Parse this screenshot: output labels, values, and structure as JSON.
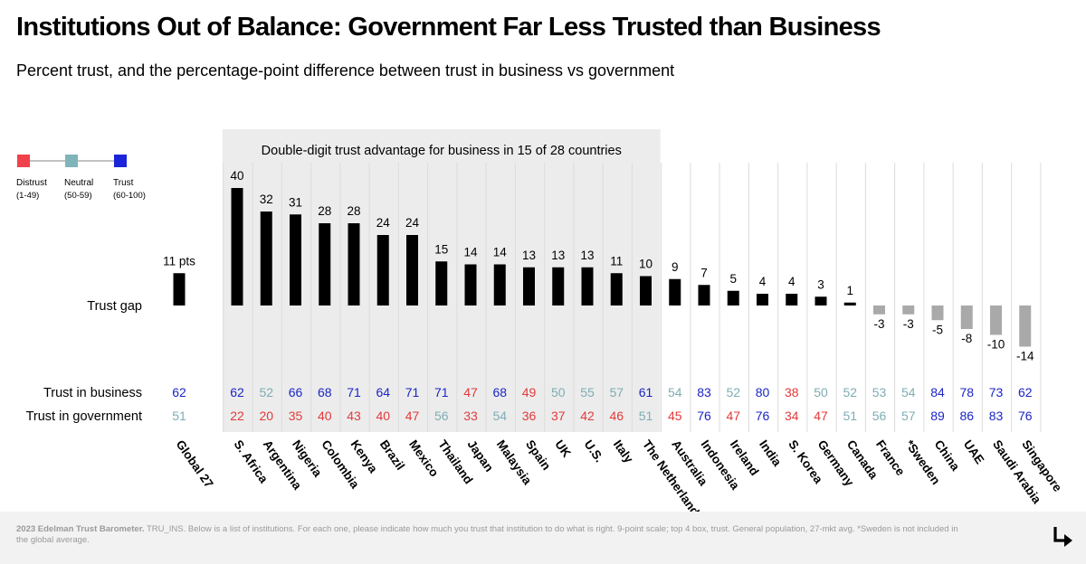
{
  "title": "Institutions Out of Balance: Government Far Less Trusted than Business",
  "subtitle": "Percent trust, and the percentage-point difference between trust in business vs government",
  "legend": [
    {
      "label": "Distrust",
      "range": "(1-49)",
      "color": "#f0424a"
    },
    {
      "label": "Neutral",
      "range": "(50-59)",
      "color": "#80b4bb"
    },
    {
      "label": "Trust",
      "range": "(60-100)",
      "color": "#1b24d8"
    }
  ],
  "colors": {
    "distrust": "#e23a3a",
    "neutral": "#7fadb3",
    "trust": "#1c25c4",
    "bar_positive": "#000000",
    "bar_negative": "#a9a9a9",
    "highlight_bg": "#ececec"
  },
  "highlight_label": "Double-digit trust advantage for business in 15 of 28 countries",
  "row_labels": {
    "gap": "Trust gap",
    "business": "Trust in business",
    "government": "Trust in government"
  },
  "global_label_suffix": " pts",
  "footer": {
    "source": "2023 Edelman Trust Barometer.",
    "note": " TRU_INS. Below is a list of institutions. For each one, please indicate how much you trust that institution to do what is right. 9-point scale; top 4 box, trust. General population, 27-mkt avg. *Sweden is not included in the global average."
  },
  "next_icon": "arrow-down-right-icon",
  "chart_data": {
    "type": "bar",
    "categories": [
      "Global 27",
      "S. Africa",
      "Argentina",
      "Nigeria",
      "Colombia",
      "Kenya",
      "Brazil",
      "Mexico",
      "Thailand",
      "Japan",
      "Malaysia",
      "Spain",
      "UK",
      "U.S.",
      "Italy",
      "The Netherlands",
      "Australia",
      "Indonesia",
      "Ireland",
      "India",
      "S. Korea",
      "Germany",
      "Canada",
      "France",
      "*Sweden",
      "China",
      "UAE",
      "Saudi Arabia",
      "Singapore"
    ],
    "series": [
      {
        "name": "Trust gap",
        "values": [
          11,
          40,
          32,
          31,
          28,
          28,
          24,
          24,
          15,
          14,
          14,
          13,
          13,
          13,
          11,
          10,
          9,
          7,
          5,
          4,
          4,
          3,
          1,
          -3,
          -3,
          -5,
          -8,
          -10,
          -14
        ]
      },
      {
        "name": "Trust in business",
        "values": [
          62,
          62,
          52,
          66,
          68,
          71,
          64,
          71,
          71,
          47,
          68,
          49,
          50,
          55,
          57,
          61,
          54,
          83,
          52,
          80,
          38,
          50,
          52,
          53,
          54,
          84,
          78,
          73,
          62
        ]
      },
      {
        "name": "Trust in government",
        "values": [
          51,
          22,
          20,
          35,
          40,
          43,
          40,
          47,
          56,
          33,
          54,
          36,
          37,
          42,
          46,
          51,
          45,
          76,
          47,
          76,
          34,
          47,
          51,
          56,
          57,
          89,
          86,
          83,
          76
        ]
      }
    ]
  }
}
